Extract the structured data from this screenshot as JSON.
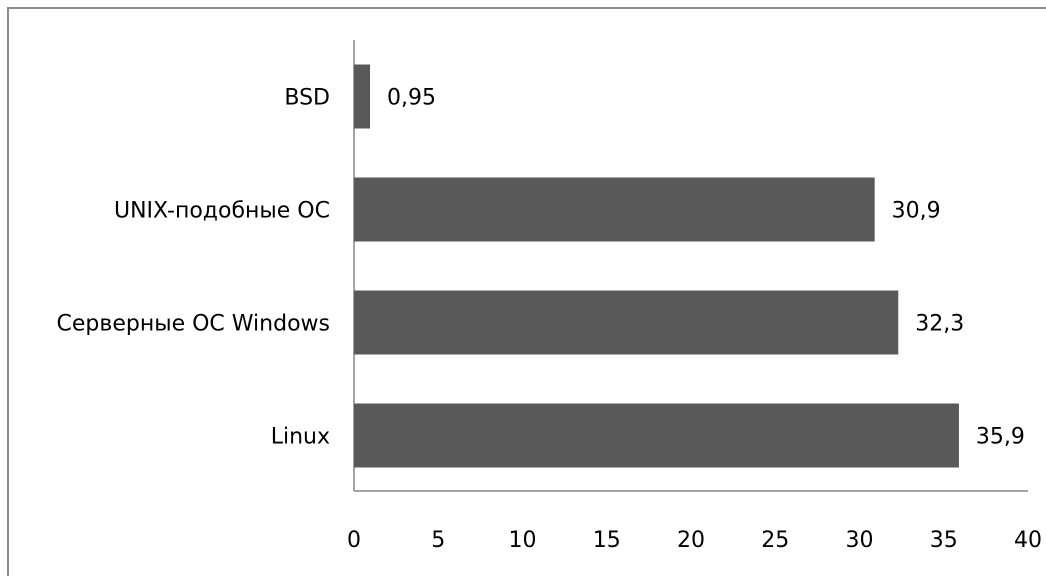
{
  "chart_data": {
    "type": "bar",
    "orientation": "horizontal",
    "categories": [
      "BSD",
      "UNIX-подобные ОС",
      "Серверные ОС Windows",
      "Linux"
    ],
    "values": [
      0.95,
      30.9,
      32.3,
      35.9
    ],
    "value_labels": [
      "0,95",
      "30,9",
      "32,3",
      "35,9"
    ],
    "xlim": [
      0,
      40
    ],
    "xticks": [
      0,
      5,
      10,
      15,
      20,
      25,
      30,
      35,
      40
    ],
    "grid": false,
    "legend": "none",
    "bar_color": "#595959"
  }
}
